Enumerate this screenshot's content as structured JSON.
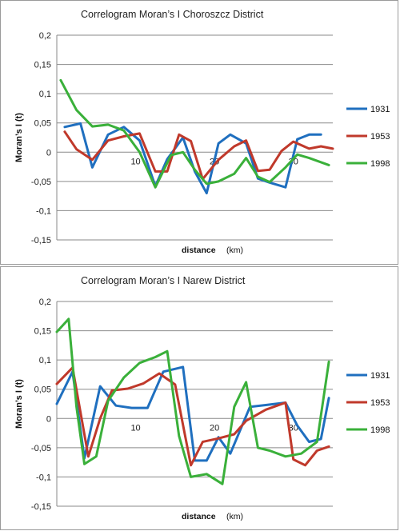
{
  "chart_data": [
    {
      "type": "line",
      "title": "Correlogram Moran’s I   Choroszcz District",
      "xlabel": "distance",
      "xlabel_unit": "(km)",
      "ylabel": "Moran’s I (t)",
      "ylim": [
        -0.15,
        0.2
      ],
      "yticks": [
        0.2,
        0.15,
        0.1,
        0.05,
        0,
        -0.05,
        -0.1,
        -0.15
      ],
      "ytick_labels": [
        "0,2",
        "0,15",
        "0,1",
        "0,05",
        "0",
        "-0,05",
        "-0,1",
        "-0,15"
      ],
      "xlim": [
        0,
        35
      ],
      "xticks": [
        10,
        20,
        30
      ],
      "xtick_labels": [
        "10",
        "20",
        "30"
      ],
      "grid": true,
      "legend": "right",
      "series": [
        {
          "name": "1931",
          "color": "#1f6fbf",
          "x": [
            1,
            3,
            4.5,
            6.5,
            8.5,
            10.5,
            12.5,
            14,
            16,
            17.5,
            19,
            20.5,
            22,
            24,
            25.5,
            27,
            29,
            30.5,
            32,
            33.5
          ],
          "y": [
            0.043,
            0.049,
            -0.026,
            0.03,
            0.043,
            0.02,
            -0.058,
            -0.012,
            0.025,
            -0.033,
            -0.07,
            0.015,
            0.03,
            0.015,
            -0.045,
            -0.052,
            -0.06,
            0.022,
            0.03,
            0.03
          ]
        },
        {
          "name": "1953",
          "color": "#c0392b",
          "x": [
            1,
            2.5,
            4.5,
            6.5,
            8.5,
            10.5,
            12.5,
            14,
            15.5,
            17,
            18.5,
            20.5,
            22.5,
            24,
            25.5,
            27,
            28.5,
            30,
            32,
            33.5,
            35
          ],
          "y": [
            0.035,
            0.005,
            -0.013,
            0.02,
            0.027,
            0.032,
            -0.033,
            -0.033,
            0.03,
            0.019,
            -0.046,
            -0.013,
            0.01,
            0.02,
            -0.032,
            -0.03,
            0.002,
            0.018,
            0.006,
            0.01,
            0.006
          ]
        },
        {
          "name": "1998",
          "color": "#3ab03a",
          "x": [
            0.5,
            2.5,
            4.5,
            6.5,
            8.5,
            10.5,
            12.5,
            14.5,
            16,
            17.5,
            19,
            20.5,
            22.5,
            24,
            25.5,
            27,
            29,
            30.5,
            32,
            34.5
          ],
          "y": [
            0.123,
            0.072,
            0.044,
            0.047,
            0.037,
            0.0,
            -0.06,
            -0.005,
            0.0,
            -0.03,
            -0.054,
            -0.05,
            -0.037,
            -0.01,
            -0.042,
            -0.051,
            -0.026,
            -0.004,
            -0.01,
            -0.022
          ]
        }
      ]
    },
    {
      "type": "line",
      "title": "Correlogram Moran’s I   Narew District",
      "xlabel": "distance",
      "xlabel_unit": "(km)",
      "ylabel": "Moran’s I (t)",
      "ylim": [
        -0.15,
        0.2
      ],
      "yticks": [
        0.2,
        0.15,
        0.1,
        0.05,
        0,
        -0.05,
        -0.1,
        -0.15
      ],
      "ytick_labels": [
        "0,2",
        "0,15",
        "0,1",
        "0,05",
        "0",
        "-0,05",
        "-0,1",
        "-0,15"
      ],
      "xlim": [
        0,
        35
      ],
      "xticks": [
        10,
        20,
        30
      ],
      "xtick_labels": [
        "10",
        "20",
        "30"
      ],
      "grid": true,
      "legend": "right",
      "series": [
        {
          "name": "1931",
          "color": "#1f6fbf",
          "x": [
            0,
            2,
            3.5,
            5.5,
            7.5,
            9.5,
            11.5,
            13.5,
            16,
            17.5,
            19,
            20.5,
            22,
            24.5,
            26.5,
            29,
            30.5,
            32,
            33.5,
            34.5
          ],
          "y": [
            0.025,
            0.08,
            -0.068,
            0.055,
            0.022,
            0.018,
            0.018,
            0.08,
            0.088,
            -0.072,
            -0.072,
            -0.032,
            -0.06,
            0.02,
            0.023,
            0.027,
            -0.012,
            -0.04,
            -0.035,
            0.035
          ]
        },
        {
          "name": "1953",
          "color": "#c0392b",
          "x": [
            0,
            2,
            4,
            5.5,
            7,
            9,
            11,
            13,
            15,
            17,
            18.5,
            20.5,
            22.5,
            24,
            26.5,
            29,
            30,
            31.5,
            33,
            34.5
          ],
          "y": [
            0.059,
            0.087,
            -0.065,
            0.0,
            0.048,
            0.051,
            0.06,
            0.077,
            0.058,
            -0.08,
            -0.04,
            -0.034,
            -0.027,
            -0.004,
            0.015,
            0.027,
            -0.07,
            -0.08,
            -0.055,
            -0.048
          ]
        },
        {
          "name": "1998",
          "color": "#3ab03a",
          "x": [
            0,
            1.5,
            2.5,
            3.5,
            5,
            6.5,
            8.5,
            10.5,
            12.5,
            14,
            15.5,
            17,
            19,
            21,
            22.5,
            24,
            25.5,
            27,
            29,
            31,
            33,
            34.5
          ],
          "y": [
            0.148,
            0.17,
            0.02,
            -0.078,
            -0.065,
            0.03,
            0.07,
            0.095,
            0.105,
            0.115,
            -0.03,
            -0.1,
            -0.095,
            -0.112,
            0.02,
            0.062,
            -0.05,
            -0.055,
            -0.065,
            -0.06,
            -0.04,
            0.097
          ]
        }
      ]
    }
  ]
}
